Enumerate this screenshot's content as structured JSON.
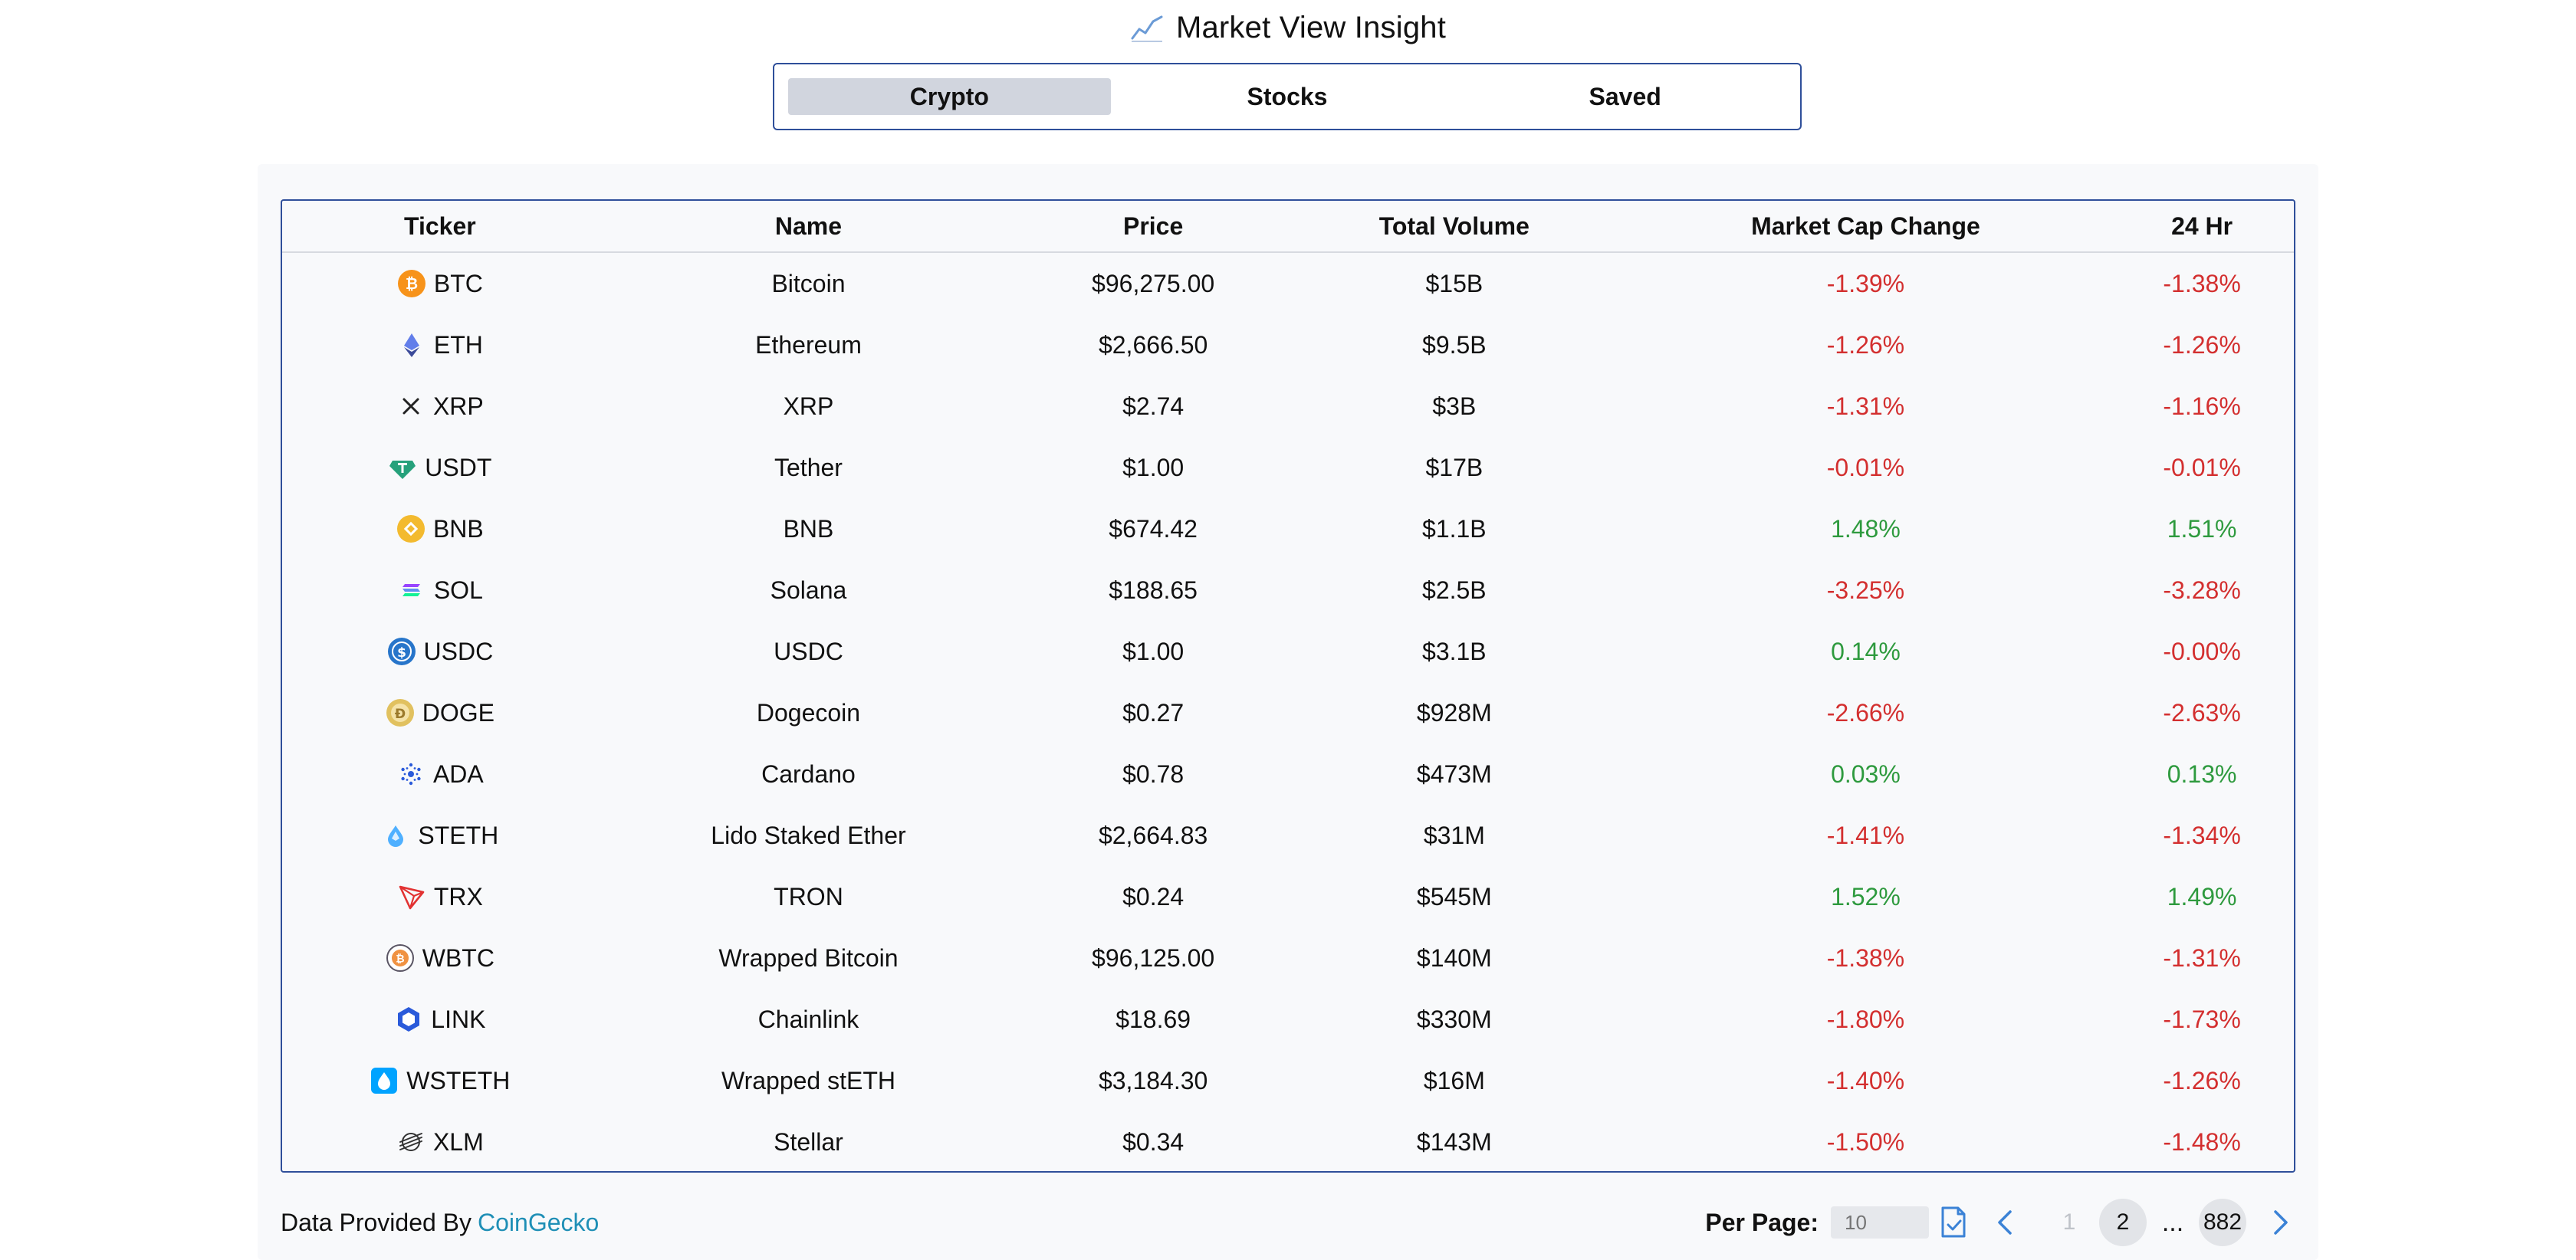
{
  "app": {
    "title": "Market View Insight"
  },
  "tabs": [
    {
      "label": "Crypto",
      "active": true
    },
    {
      "label": "Stocks",
      "active": false
    },
    {
      "label": "Saved",
      "active": false
    }
  ],
  "table": {
    "headers": {
      "ticker": "Ticker",
      "name": "Name",
      "price": "Price",
      "volume": "Total Volume",
      "mcap_change": "Market Cap Change",
      "change_24h": "24 Hr"
    },
    "rows": [
      {
        "icon": "btc-icon",
        "ticker": "BTC",
        "name": "Bitcoin",
        "price": "$96,275.00",
        "volume": "$15B",
        "mcap_change": "-1.39%",
        "change_24h": "-1.38%"
      },
      {
        "icon": "eth-icon",
        "ticker": "ETH",
        "name": "Ethereum",
        "price": "$2,666.50",
        "volume": "$9.5B",
        "mcap_change": "-1.26%",
        "change_24h": "-1.26%"
      },
      {
        "icon": "xrp-icon",
        "ticker": "XRP",
        "name": "XRP",
        "price": "$2.74",
        "volume": "$3B",
        "mcap_change": "-1.31%",
        "change_24h": "-1.16%"
      },
      {
        "icon": "usdt-icon",
        "ticker": "USDT",
        "name": "Tether",
        "price": "$1.00",
        "volume": "$17B",
        "mcap_change": "-0.01%",
        "change_24h": "-0.01%"
      },
      {
        "icon": "bnb-icon",
        "ticker": "BNB",
        "name": "BNB",
        "price": "$674.42",
        "volume": "$1.1B",
        "mcap_change": "1.48%",
        "change_24h": "1.51%"
      },
      {
        "icon": "sol-icon",
        "ticker": "SOL",
        "name": "Solana",
        "price": "$188.65",
        "volume": "$2.5B",
        "mcap_change": "-3.25%",
        "change_24h": "-3.28%"
      },
      {
        "icon": "usdc-icon",
        "ticker": "USDC",
        "name": "USDC",
        "price": "$1.00",
        "volume": "$3.1B",
        "mcap_change": "0.14%",
        "change_24h": "-0.00%"
      },
      {
        "icon": "doge-icon",
        "ticker": "DOGE",
        "name": "Dogecoin",
        "price": "$0.27",
        "volume": "$928M",
        "mcap_change": "-2.66%",
        "change_24h": "-2.63%"
      },
      {
        "icon": "ada-icon",
        "ticker": "ADA",
        "name": "Cardano",
        "price": "$0.78",
        "volume": "$473M",
        "mcap_change": "0.03%",
        "change_24h": "0.13%"
      },
      {
        "icon": "steth-icon",
        "ticker": "STETH",
        "name": "Lido Staked Ether",
        "price": "$2,664.83",
        "volume": "$31M",
        "mcap_change": "-1.41%",
        "change_24h": "-1.34%"
      },
      {
        "icon": "trx-icon",
        "ticker": "TRX",
        "name": "TRON",
        "price": "$0.24",
        "volume": "$545M",
        "mcap_change": "1.52%",
        "change_24h": "1.49%"
      },
      {
        "icon": "wbtc-icon",
        "ticker": "WBTC",
        "name": "Wrapped Bitcoin",
        "price": "$96,125.00",
        "volume": "$140M",
        "mcap_change": "-1.38%",
        "change_24h": "-1.31%"
      },
      {
        "icon": "link-icon",
        "ticker": "LINK",
        "name": "Chainlink",
        "price": "$18.69",
        "volume": "$330M",
        "mcap_change": "-1.80%",
        "change_24h": "-1.73%"
      },
      {
        "icon": "wsteth-icon",
        "ticker": "WSTETH",
        "name": "Wrapped stETH",
        "price": "$3,184.30",
        "volume": "$16M",
        "mcap_change": "-1.40%",
        "change_24h": "-1.26%"
      },
      {
        "icon": "xlm-icon",
        "ticker": "XLM",
        "name": "Stellar",
        "price": "$0.34",
        "volume": "$143M",
        "mcap_change": "-1.50%",
        "change_24h": "-1.48%"
      }
    ]
  },
  "footer": {
    "provided_by": "Data Provided By",
    "provider": "CoinGecko",
    "per_page_label": "Per Page:",
    "per_page_placeholder": "10",
    "pages": [
      "1",
      "2",
      "...",
      "882"
    ],
    "current_page": "2"
  },
  "colors": {
    "accent": "#2f4f9a",
    "negative": "#d32f2f",
    "positive": "#2e9a3e",
    "link": "#1f8fb6"
  }
}
